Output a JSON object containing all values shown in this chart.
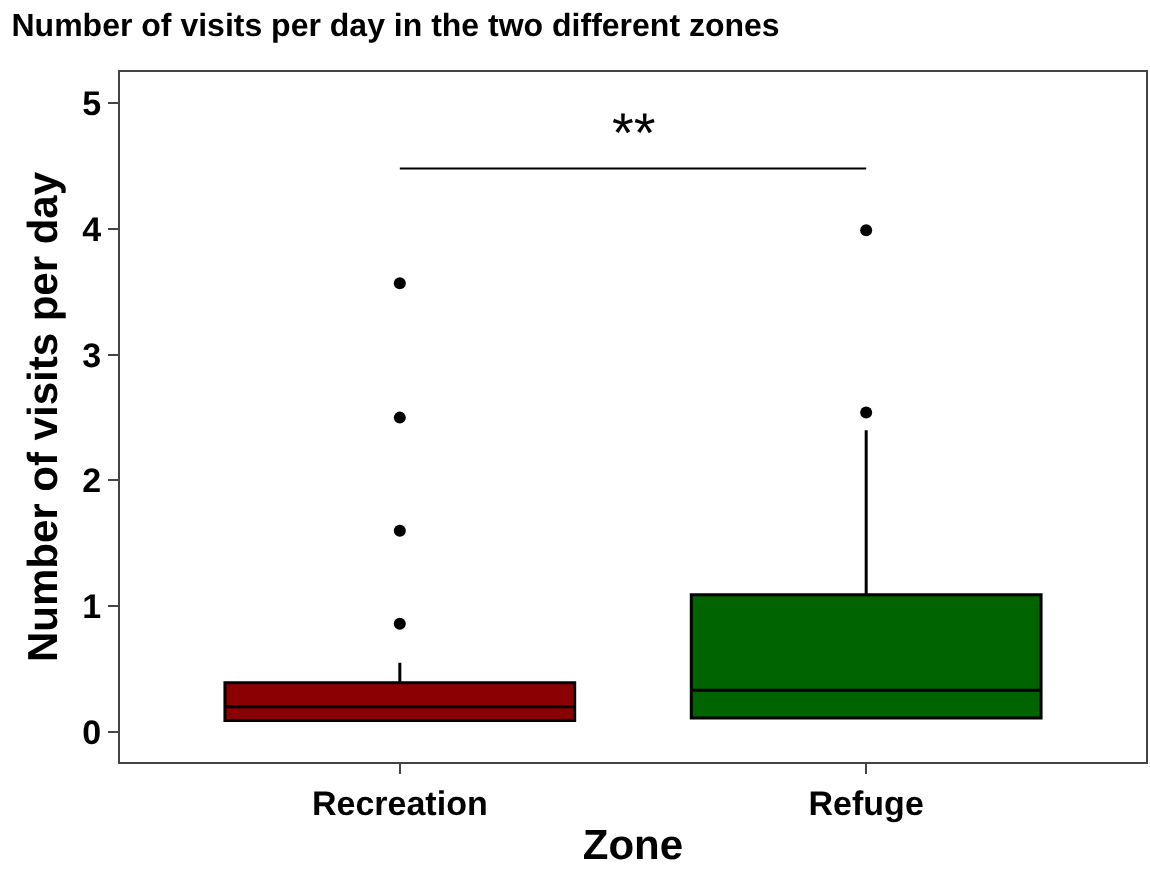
{
  "chart_data": {
    "type": "box",
    "title": "Number of visits per day in the two different zones",
    "xlabel": "Zone",
    "ylabel": "Number of visits per day",
    "categories": [
      "Recreation",
      "Refuge"
    ],
    "colors": [
      "#8b0000",
      "#006400"
    ],
    "boxes": [
      {
        "q1": 0.09,
        "median": 0.2,
        "q3": 0.39,
        "high": 0.55,
        "outliers": [
          0.86,
          1.6,
          2.5,
          3.57
        ]
      },
      {
        "q1": 0.11,
        "median": 0.33,
        "q3": 1.09,
        "high": 2.4,
        "outliers": [
          2.54,
          3.99
        ]
      }
    ],
    "ylim": [
      -0.24,
      5.25
    ],
    "yticks": [
      0,
      1,
      2,
      3,
      4,
      5
    ],
    "annotations": [
      "**"
    ]
  }
}
